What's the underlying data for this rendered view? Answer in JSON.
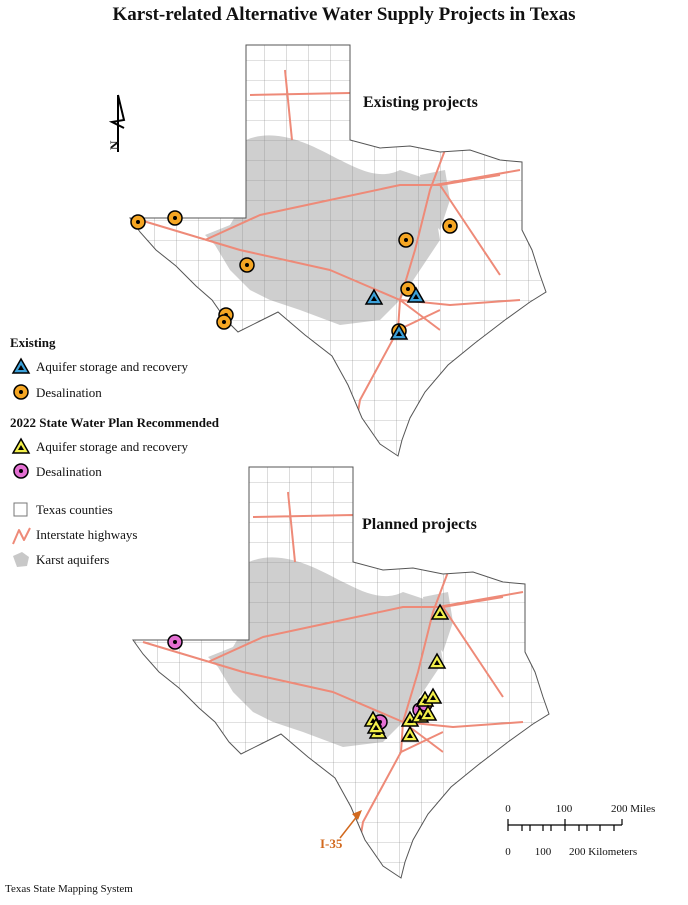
{
  "title": "Karst-related Alternative Water Supply Projects in Texas",
  "maps": [
    {
      "label": "Existing projects"
    },
    {
      "label": "Planned projects"
    }
  ],
  "north_label": "N",
  "legend": {
    "groups": [
      {
        "heading": "Existing",
        "items": [
          "Aquifer storage and recovery",
          "Desalination"
        ]
      },
      {
        "heading": "2022 State Water Plan Recommended",
        "items": [
          "Aquifer storage and recovery",
          "Desalination"
        ]
      }
    ],
    "layers": [
      "Texas counties",
      "Interstate highways",
      "Karst aquifers"
    ]
  },
  "annotation": "I-35",
  "scale": {
    "miles": [
      "0",
      "100",
      "200 Miles"
    ],
    "kilometers": [
      "0",
      "100",
      "200 Kilometers"
    ]
  },
  "credit": "Texas State Mapping System"
}
